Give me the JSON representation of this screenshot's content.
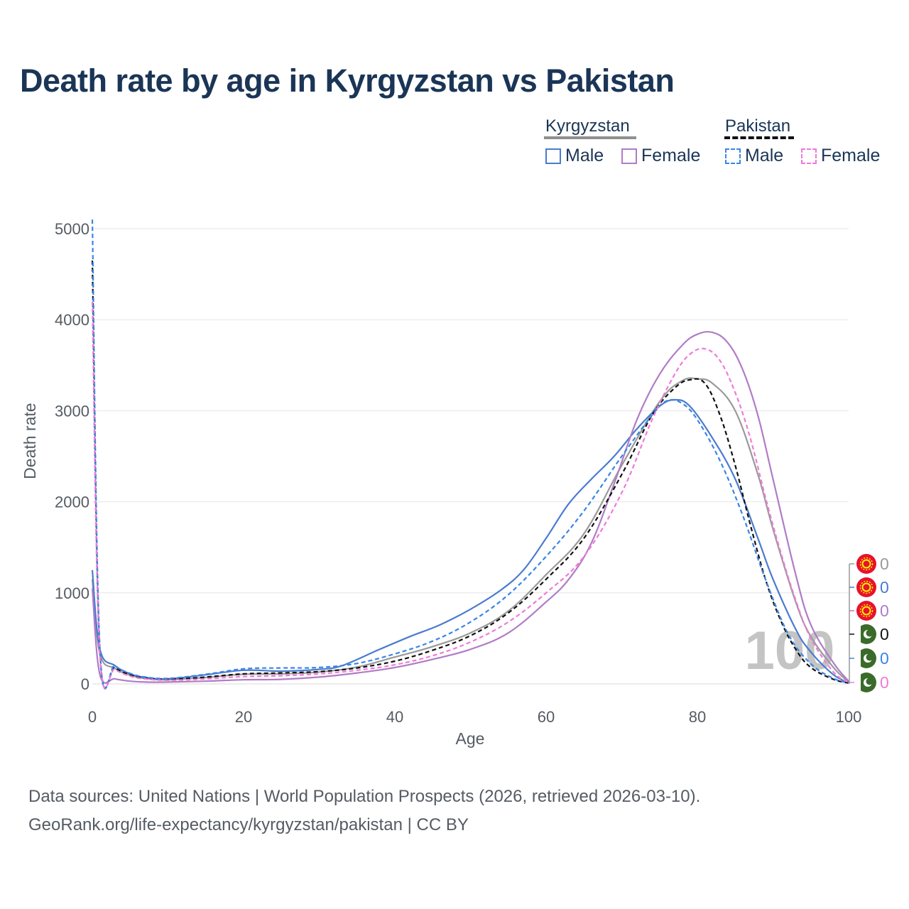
{
  "chart_data": {
    "type": "line",
    "title": "Death rate by age in Kyrgyzstan vs Pakistan",
    "xlabel": "Age",
    "ylabel": "Death rate",
    "xlim": [
      0,
      100
    ],
    "ylim": [
      0,
      5000
    ],
    "x_ticks": [
      "0",
      "20",
      "40",
      "60",
      "80",
      "100"
    ],
    "y_ticks": [
      "0",
      "1000",
      "2000",
      "3000",
      "4000",
      "5000"
    ],
    "grid": true,
    "legend_placement": "top-right",
    "legend": {
      "groups": [
        {
          "name": "Kyrgyzstan",
          "line_style": "solid",
          "items": [
            {
              "label": "Male"
            },
            {
              "label": "Female"
            }
          ]
        },
        {
          "name": "Pakistan",
          "line_style": "dashed",
          "items": [
            {
              "label": "Male"
            },
            {
              "label": "Female"
            }
          ]
        }
      ]
    },
    "current_age": "100",
    "series": [
      {
        "name": "Kyrgyzstan Total",
        "country": "Kyrgyzstan",
        "sex": "Total",
        "dashed": false,
        "color": "#9a9a9a",
        "end_value": "0",
        "x": [
          0,
          1,
          3,
          5,
          7,
          10,
          15,
          20,
          25,
          30,
          35,
          40,
          45,
          50,
          55,
          60,
          65,
          70,
          75,
          78,
          80,
          82,
          85,
          88,
          90,
          93,
          95,
          98,
          100
        ],
        "y": [
          1150,
          330,
          170,
          95,
          60,
          45,
          70,
          105,
          110,
          130,
          185,
          295,
          410,
          560,
          800,
          1200,
          1650,
          2400,
          3100,
          3330,
          3350,
          3300,
          3000,
          2300,
          1700,
          900,
          520,
          180,
          20
        ]
      },
      {
        "name": "Kyrgyzstan Male",
        "country": "Kyrgyzstan",
        "sex": "Male",
        "dashed": false,
        "color": "#4a7bd0",
        "end_value": "0",
        "x": [
          0,
          1,
          3,
          5,
          7,
          10,
          15,
          20,
          25,
          30,
          33,
          38,
          42,
          46,
          50,
          54,
          57,
          60,
          63,
          66,
          69,
          72,
          75,
          77,
          79,
          82,
          85,
          88,
          90,
          93,
          95,
          98,
          100
        ],
        "y": [
          1250,
          380,
          200,
          110,
          70,
          55,
          100,
          150,
          140,
          160,
          200,
          380,
          520,
          650,
          820,
          1030,
          1250,
          1600,
          1980,
          2250,
          2500,
          2800,
          3050,
          3120,
          3050,
          2700,
          2250,
          1600,
          1150,
          600,
          350,
          100,
          15
        ]
      },
      {
        "name": "Kyrgyzstan Female",
        "country": "Kyrgyzstan",
        "sex": "Female",
        "dashed": false,
        "color": "#b07cc6",
        "end_value": "0",
        "x": [
          0,
          1,
          3,
          5,
          7,
          10,
          15,
          20,
          25,
          30,
          35,
          40,
          45,
          50,
          55,
          60,
          63,
          66,
          69,
          72,
          75,
          78,
          80,
          82,
          84,
          86,
          88,
          90,
          93,
          95,
          98,
          100
        ],
        "y": [
          1050,
          100,
          55,
          30,
          20,
          20,
          30,
          45,
          50,
          75,
          120,
          180,
          270,
          380,
          560,
          900,
          1150,
          1550,
          2200,
          2900,
          3400,
          3720,
          3840,
          3860,
          3750,
          3450,
          2950,
          2250,
          1200,
          650,
          230,
          30
        ]
      },
      {
        "name": "Pakistan Total",
        "country": "Pakistan",
        "sex": "Total",
        "dashed": true,
        "color": "#111111",
        "end_value": "0",
        "x": [
          0,
          1,
          3,
          5,
          7,
          10,
          15,
          20,
          25,
          30,
          35,
          40,
          45,
          50,
          55,
          60,
          65,
          70,
          74,
          77,
          79,
          81,
          83,
          85,
          87,
          89,
          91,
          93,
          95,
          98,
          100
        ],
        "y": [
          4650,
          350,
          180,
          100,
          65,
          50,
          75,
          110,
          120,
          135,
          175,
          250,
          370,
          530,
          780,
          1150,
          1600,
          2300,
          2950,
          3250,
          3340,
          3300,
          2950,
          2400,
          1750,
          1150,
          700,
          380,
          180,
          50,
          10
        ]
      },
      {
        "name": "Pakistan Male",
        "country": "Pakistan",
        "sex": "Male",
        "dashed": true,
        "color": "#3a85e6",
        "end_value": "0",
        "x": [
          0,
          1,
          3,
          5,
          7,
          10,
          15,
          20,
          25,
          30,
          35,
          40,
          45,
          50,
          55,
          60,
          65,
          70,
          74,
          76,
          78,
          80,
          83,
          86,
          89,
          92,
          95,
          98,
          100
        ],
        "y": [
          5100,
          380,
          200,
          115,
          75,
          60,
          105,
          165,
          175,
          180,
          225,
          330,
          470,
          680,
          980,
          1400,
          1900,
          2500,
          2950,
          3110,
          3080,
          2900,
          2450,
          1850,
          1150,
          550,
          220,
          60,
          10
        ]
      },
      {
        "name": "Pakistan Female",
        "country": "Pakistan",
        "sex": "Female",
        "dashed": true,
        "color": "#f07ad8",
        "end_value": "0",
        "x": [
          0,
          1,
          3,
          5,
          7,
          10,
          15,
          20,
          25,
          30,
          35,
          40,
          45,
          50,
          55,
          60,
          65,
          70,
          74,
          77,
          79,
          81,
          83,
          85,
          87,
          89,
          91,
          93,
          95,
          98,
          100
        ],
        "y": [
          4200,
          310,
          160,
          85,
          55,
          40,
          55,
          80,
          90,
          110,
          150,
          210,
          310,
          460,
          680,
          1000,
          1400,
          2100,
          2900,
          3400,
          3620,
          3680,
          3550,
          3200,
          2700,
          2050,
          1450,
          920,
          500,
          130,
          15
        ]
      }
    ]
  },
  "footer": {
    "line1": "Data sources: United Nations | World Population Prospects (2026, retrieved 2026-03-10).",
    "line2": "GeoRank.org/life-expectancy/kyrgyzstan/pakistan | CC BY"
  }
}
